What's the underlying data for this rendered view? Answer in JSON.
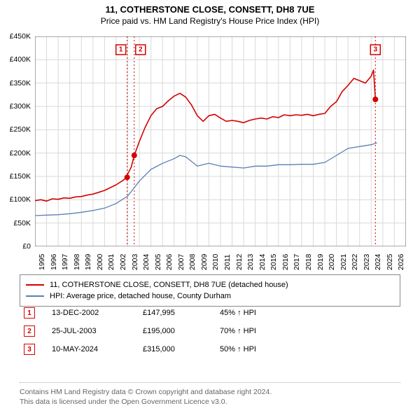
{
  "title": "11, COTHERSTONE CLOSE, CONSETT, DH8 7UE",
  "subtitle": "Price paid vs. HM Land Registry's House Price Index (HPI)",
  "chart": {
    "type": "line",
    "background_color": "#ffffff",
    "grid_color": "#d9d9d9",
    "axis_color": "#555555",
    "title_fontsize": 13,
    "label_fontsize": 10.5,
    "x_domain": [
      1995,
      2027
    ],
    "y_domain": [
      0,
      450000
    ],
    "ytick_step": 50000,
    "ytick_labels": [
      "£0",
      "£50K",
      "£100K",
      "£150K",
      "£200K",
      "£250K",
      "£300K",
      "£350K",
      "£400K",
      "£450K"
    ],
    "xticks": [
      1995,
      1996,
      1997,
      1998,
      1999,
      2000,
      2001,
      2002,
      2003,
      2004,
      2005,
      2006,
      2007,
      2008,
      2009,
      2010,
      2011,
      2012,
      2013,
      2014,
      2015,
      2016,
      2017,
      2018,
      2019,
      2020,
      2021,
      2022,
      2023,
      2024,
      2025,
      2026
    ],
    "series": [
      {
        "name": "property",
        "label": "11, COTHERSTONE CLOSE, CONSETT, DH8 7UE (detached house)",
        "color": "#d40000",
        "line_width": 1.6,
        "data": [
          [
            1995,
            98000
          ],
          [
            1995.5,
            100000
          ],
          [
            1996,
            97000
          ],
          [
            1996.5,
            102000
          ],
          [
            1997,
            101000
          ],
          [
            1997.5,
            104000
          ],
          [
            1998,
            103000
          ],
          [
            1998.5,
            106000
          ],
          [
            1999,
            107000
          ],
          [
            1999.5,
            110000
          ],
          [
            2000,
            112000
          ],
          [
            2000.5,
            116000
          ],
          [
            2001,
            120000
          ],
          [
            2001.5,
            126000
          ],
          [
            2002,
            132000
          ],
          [
            2002.5,
            140000
          ],
          [
            2002.95,
            147995
          ],
          [
            2003,
            155000
          ],
          [
            2003.3,
            170000
          ],
          [
            2003.56,
            195000
          ],
          [
            2004,
            225000
          ],
          [
            2004.5,
            255000
          ],
          [
            2005,
            280000
          ],
          [
            2005.5,
            295000
          ],
          [
            2006,
            300000
          ],
          [
            2006.5,
            312000
          ],
          [
            2007,
            322000
          ],
          [
            2007.5,
            328000
          ],
          [
            2008,
            320000
          ],
          [
            2008.5,
            303000
          ],
          [
            2009,
            280000
          ],
          [
            2009.5,
            268000
          ],
          [
            2010,
            280000
          ],
          [
            2010.5,
            283000
          ],
          [
            2011,
            275000
          ],
          [
            2011.5,
            268000
          ],
          [
            2012,
            270000
          ],
          [
            2012.5,
            268000
          ],
          [
            2013,
            265000
          ],
          [
            2013.5,
            270000
          ],
          [
            2014,
            273000
          ],
          [
            2014.5,
            275000
          ],
          [
            2015,
            273000
          ],
          [
            2015.5,
            278000
          ],
          [
            2016,
            276000
          ],
          [
            2016.5,
            282000
          ],
          [
            2017,
            280000
          ],
          [
            2017.5,
            282000
          ],
          [
            2018,
            281000
          ],
          [
            2018.5,
            283000
          ],
          [
            2019,
            280000
          ],
          [
            2019.5,
            283000
          ],
          [
            2020,
            285000
          ],
          [
            2020.5,
            300000
          ],
          [
            2021,
            310000
          ],
          [
            2021.5,
            332000
          ],
          [
            2022,
            345000
          ],
          [
            2022.5,
            360000
          ],
          [
            2023,
            355000
          ],
          [
            2023.5,
            350000
          ],
          [
            2024,
            365000
          ],
          [
            2024.2,
            378000
          ],
          [
            2024.36,
            315000
          ]
        ]
      },
      {
        "name": "hpi",
        "label": "HPI: Average price, detached house, County Durham",
        "color": "#5b7fb4",
        "line_width": 1.3,
        "data": [
          [
            1995,
            66000
          ],
          [
            1996,
            67000
          ],
          [
            1997,
            68000
          ],
          [
            1998,
            70000
          ],
          [
            1999,
            73000
          ],
          [
            2000,
            77000
          ],
          [
            2001,
            82000
          ],
          [
            2002,
            92000
          ],
          [
            2003,
            108000
          ],
          [
            2004,
            140000
          ],
          [
            2005,
            165000
          ],
          [
            2006,
            178000
          ],
          [
            2007,
            188000
          ],
          [
            2007.5,
            195000
          ],
          [
            2008,
            192000
          ],
          [
            2009,
            172000
          ],
          [
            2010,
            178000
          ],
          [
            2011,
            172000
          ],
          [
            2012,
            170000
          ],
          [
            2013,
            168000
          ],
          [
            2014,
            172000
          ],
          [
            2015,
            172000
          ],
          [
            2016,
            175000
          ],
          [
            2017,
            175000
          ],
          [
            2018,
            176000
          ],
          [
            2019,
            176000
          ],
          [
            2020,
            180000
          ],
          [
            2021,
            195000
          ],
          [
            2022,
            210000
          ],
          [
            2023,
            214000
          ],
          [
            2024,
            218000
          ],
          [
            2024.5,
            222000
          ]
        ]
      }
    ],
    "event_markers": [
      {
        "n": "1",
        "x": 2002.95,
        "y": 147995,
        "box_y": 25000
      },
      {
        "n": "2",
        "x": 2003.56,
        "y": 195000,
        "box_y": 25000
      },
      {
        "n": "3",
        "x": 2024.36,
        "y": 315000,
        "box_y": 25000
      }
    ],
    "event_line_color": "#d40000",
    "event_line_dash": "2,3"
  },
  "legend": [
    {
      "color": "#d40000",
      "label": "11, COTHERSTONE CLOSE, CONSETT, DH8 7UE (detached house)"
    },
    {
      "color": "#5b7fb4",
      "label": "HPI: Average price, detached house, County Durham"
    }
  ],
  "events": [
    {
      "n": "1",
      "date": "13-DEC-2002",
      "price": "£147,995",
      "pct": "45% ↑ HPI"
    },
    {
      "n": "2",
      "date": "25-JUL-2003",
      "price": "£195,000",
      "pct": "70% ↑ HPI"
    },
    {
      "n": "3",
      "date": "10-MAY-2024",
      "price": "£315,000",
      "pct": "50% ↑ HPI"
    }
  ],
  "footer_line1": "Contains HM Land Registry data © Crown copyright and database right 2024.",
  "footer_line2": "This data is licensed under the Open Government Licence v3.0."
}
